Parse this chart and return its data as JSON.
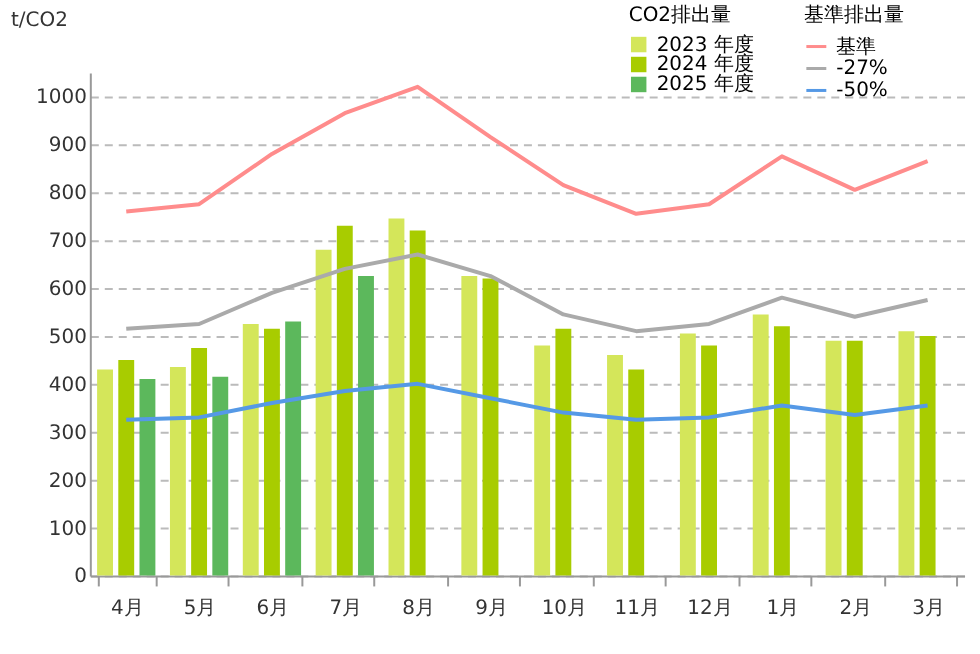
{
  "chart_data": {
    "type": "bar",
    "ylabel": "t/CO2",
    "legend_title": "CO2排出量",
    "categories": [
      "4月",
      "5月",
      "6月",
      "7月",
      "8月",
      "9月",
      "10月",
      "11月",
      "12月",
      "1月",
      "2月",
      "3月"
    ],
    "series": [
      {
        "name": "2023 年度",
        "type": "bar",
        "color": "#d4e65a",
        "values": [
          430,
          435,
          525,
          680,
          745,
          625,
          480,
          460,
          505,
          545,
          490,
          510
        ]
      },
      {
        "name": "2024 年度",
        "type": "bar",
        "color": "#a8cc00",
        "values": [
          450,
          475,
          515,
          730,
          720,
          620,
          515,
          430,
          480,
          520,
          490,
          500
        ]
      },
      {
        "name": "2025 年度",
        "type": "bar",
        "color": "#5cb85c",
        "values": [
          410,
          415,
          530,
          625,
          null,
          null,
          null,
          null,
          null,
          null,
          null,
          null
        ]
      },
      {
        "name": "基準",
        "type": "line",
        "color": "#ff8c8c",
        "values": [
          760,
          775,
          880,
          965,
          1020,
          915,
          815,
          755,
          775,
          875,
          805,
          865
        ]
      },
      {
        "name": "-27%",
        "type": "line",
        "color": "#aaaaaa",
        "values": [
          515,
          525,
          590,
          640,
          670,
          625,
          545,
          510,
          525,
          580,
          540,
          575
        ]
      },
      {
        "name": "-50%",
        "type": "line",
        "color": "#5599e6",
        "values": [
          325,
          330,
          360,
          385,
          400,
          370,
          340,
          325,
          330,
          355,
          335,
          355
        ]
      }
    ],
    "annotations": [
      "基準排出量"
    ],
    "ylim": [
      0,
      1050
    ],
    "yticks": [
      0,
      100,
      200,
      300,
      400,
      500,
      600,
      700,
      800,
      900,
      1000
    ],
    "grid": "y",
    "legend": "top right",
    "line_style": "solid"
  }
}
